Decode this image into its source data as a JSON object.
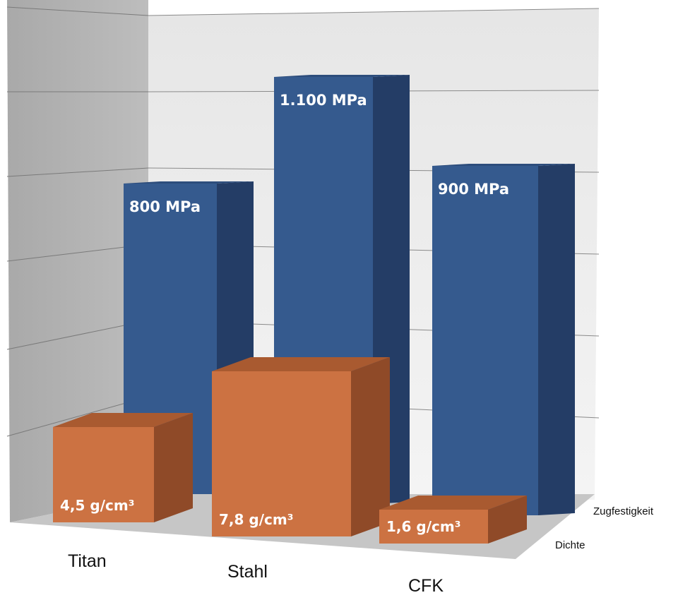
{
  "chart_data": {
    "type": "bar",
    "categories": [
      "Titan",
      "Stahl",
      "CFK"
    ],
    "series": [
      {
        "name": "Zugfestigkeit",
        "values": [
          800,
          1100,
          900
        ],
        "labels": [
          "800 MPa",
          "1.100 MPa",
          "900 MPa"
        ],
        "color": "#355a8e"
      },
      {
        "name": "Dichte",
        "values": [
          4.5,
          7.8,
          1.6
        ],
        "labels": [
          "4,5 g/cm³",
          "7,8 g/cm³",
          "1,6 g/cm³"
        ],
        "color": "#cc7242"
      }
    ],
    "grid": true,
    "legend": "depth axis, right side"
  },
  "colors": {
    "blue_front": "#355a8e",
    "blue_side": "#243d66",
    "blue_top": "#2d4d7c",
    "orange_front": "#cc7242",
    "orange_side": "#8f4a28",
    "orange_top": "#a95a30",
    "back_wall": "#ececec",
    "side_wall": "#b0b0b0",
    "floor": "#c8c8c8"
  }
}
